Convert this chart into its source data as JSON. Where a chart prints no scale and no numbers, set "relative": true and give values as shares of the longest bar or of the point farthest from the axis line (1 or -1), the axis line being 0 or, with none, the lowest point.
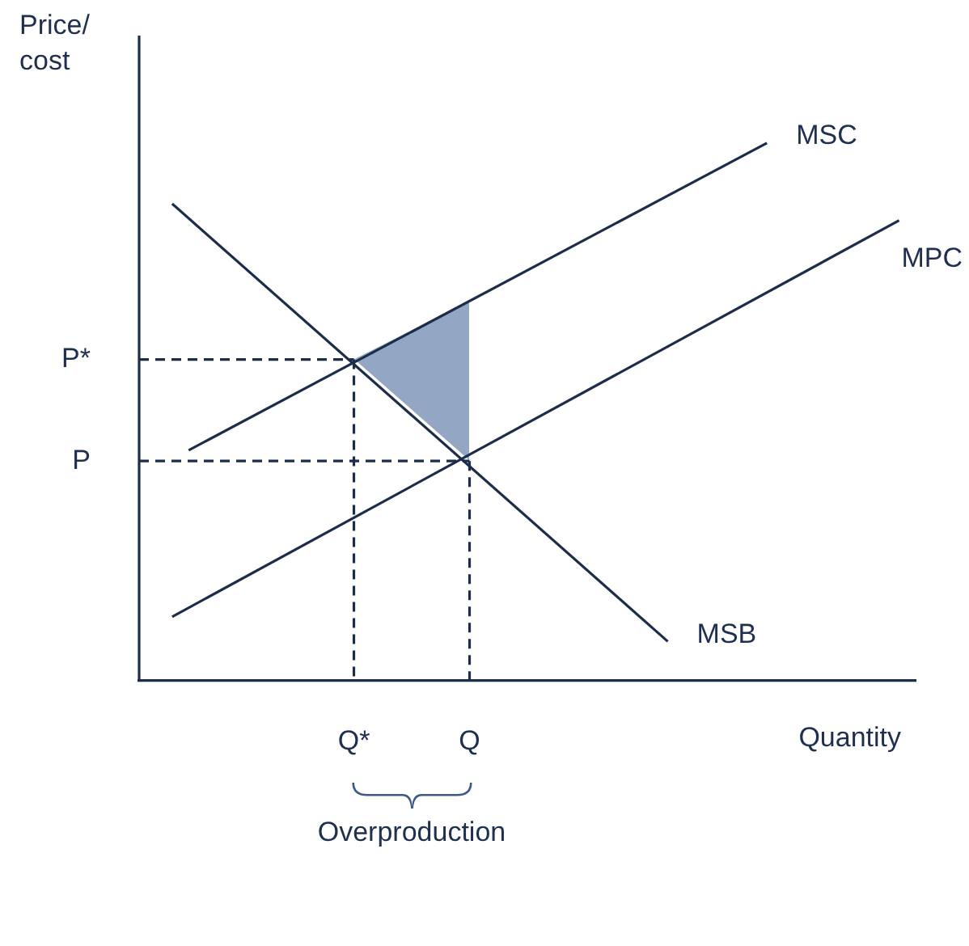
{
  "chart_data": {
    "type": "line",
    "relative": true,
    "marker": "none",
    "xlabel": "Quantity",
    "ylabel": "Price/ cost",
    "categories": [
      null,
      null,
      null,
      null,
      null,
      null,
      null,
      null,
      null,
      null,
      null,
      null,
      null,
      "Q*",
      null,
      null,
      null,
      null,
      null,
      null,
      "Q",
      null,
      null,
      null,
      null,
      null,
      null,
      null,
      null,
      null,
      null,
      null,
      null,
      null,
      null,
      null,
      null,
      null,
      null,
      null,
      null,
      null,
      null,
      null,
      null,
      null,
      null,
      null
    ],
    "annotations": [
      "Overproduction"
    ],
    "series": [
      {
        "name": "MSC",
        "color": "#1b2d4b",
        "values": [
          null,
          null,
          null,
          0.428,
          null,
          null,
          null,
          null,
          null,
          null,
          null,
          null,
          null,
          null,
          null,
          null,
          null,
          null,
          null,
          null,
          null,
          null,
          null,
          null,
          null,
          null,
          null,
          null,
          null,
          null,
          null,
          null,
          null,
          null,
          null,
          null,
          null,
          null,
          1,
          null,
          null,
          null,
          null,
          null,
          null,
          null,
          null,
          null
        ]
      },
      {
        "name": "MPC",
        "color": "#1b2d4b",
        "values": [
          null,
          null,
          0.118,
          null,
          null,
          null,
          null,
          null,
          null,
          null,
          null,
          null,
          null,
          null,
          null,
          null,
          null,
          null,
          null,
          null,
          null,
          null,
          null,
          null,
          null,
          null,
          null,
          null,
          null,
          null,
          null,
          null,
          null,
          null,
          null,
          null,
          null,
          null,
          null,
          null,
          null,
          null,
          null,
          null,
          null,
          null,
          0.856,
          null
        ]
      },
      {
        "name": "MSB",
        "color": "#1b2d4b",
        "values": [
          null,
          null,
          0.887,
          null,
          null,
          null,
          null,
          null,
          null,
          null,
          null,
          null,
          null,
          null,
          null,
          null,
          null,
          null,
          null,
          null,
          null,
          null,
          null,
          null,
          null,
          null,
          null,
          null,
          null,
          null,
          null,
          null,
          0.072,
          null,
          null,
          null,
          null,
          null,
          null,
          null,
          null,
          null,
          null,
          null,
          null,
          null,
          null,
          null
        ]
      },
      {
        "name": "P*",
        "line_style": "dashed",
        "color": "#1b2d4b",
        "values": [
          0.597,
          null,
          null,
          null,
          null,
          null,
          null,
          null,
          null,
          null,
          null,
          null,
          null,
          0.597,
          null,
          null,
          null,
          null,
          null,
          null,
          null,
          null,
          null,
          null,
          null,
          null,
          null,
          null,
          null,
          null,
          null,
          null,
          null,
          null,
          null,
          null,
          null,
          null,
          null,
          null,
          null,
          null,
          null,
          null,
          null,
          null,
          null,
          null
        ]
      },
      {
        "name": "P",
        "line_style": "dashed",
        "color": "#1b2d4b",
        "values": [
          0.408,
          null,
          null,
          null,
          null,
          null,
          null,
          null,
          null,
          null,
          null,
          null,
          null,
          null,
          null,
          null,
          null,
          null,
          null,
          null,
          0.408,
          null,
          null,
          null,
          null,
          null,
          null,
          null,
          null,
          null,
          null,
          null,
          null,
          null,
          null,
          null,
          null,
          null,
          null,
          null,
          null,
          null,
          null,
          null,
          null,
          null,
          null,
          null
        ]
      },
      {
        "line_style": "dashed",
        "color": "#1b2d4b",
        "x": [
          "Q*",
          "Q*"
        ],
        "values": [
          0.597,
          0
        ]
      },
      {
        "line_style": "dashed",
        "color": "#1b2d4b",
        "x": [
          "Q",
          "Q"
        ],
        "values": [
          0.408,
          0
        ]
      }
    ]
  }
}
